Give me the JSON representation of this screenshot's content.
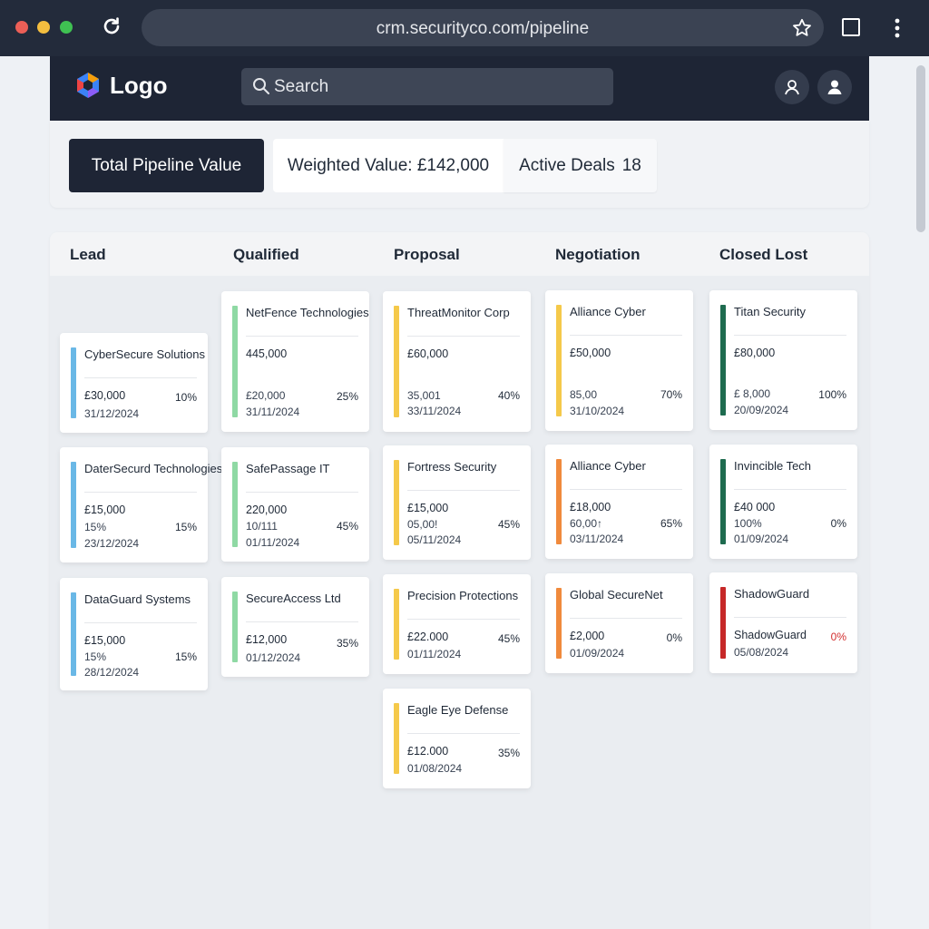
{
  "browser": {
    "url": "crm.securityco.com/pipeline"
  },
  "header": {
    "logo_text": "Logo",
    "search_placeholder": "Search"
  },
  "summary": {
    "total_label": "Total Pipeline Value",
    "weighted_label": "Weighted Value: £142,000",
    "active_label": "Active Deals",
    "active_count": "18"
  },
  "columns": [
    {
      "title": "Lead",
      "cards": [
        {
          "name": "CyberSecure Solutions",
          "value": "£30,000",
          "prob": "10%",
          "date": "31/12/2024",
          "color": "#6ab8e6"
        },
        {
          "name": "DaterSecurd Technologies",
          "value": "£15,000",
          "extra": "15%",
          "prob": "15%",
          "date": "23/12/2024",
          "color": "#6ab8e6"
        },
        {
          "name": "DataGuard Systems",
          "value": "£15,000",
          "extra": "15%",
          "prob": "15%",
          "date": "28/12/2024",
          "color": "#6ab8e6"
        }
      ]
    },
    {
      "title": "Qualified",
      "cards": [
        {
          "name": "NetFence Technologies",
          "value": "445,000",
          "value2": "£20,000",
          "prob": "25%",
          "date": "31/11/2024",
          "color": "#8fd9a4"
        },
        {
          "name": "SafePassage IT",
          "value": "220,000",
          "extra": "10/111",
          "prob": "45%",
          "date": "01/11/2024",
          "color": "#8fd9a4"
        },
        {
          "name": "SecureAccess Ltd",
          "value": "£12,000",
          "prob": "35%",
          "date": "01/12/2024",
          "color": "#8fd9a4"
        }
      ]
    },
    {
      "title": "Proposal",
      "cards": [
        {
          "name": "ThreatMonitor Corp",
          "value": "£60,000",
          "value2": "35,001",
          "prob": "40%",
          "date": "33/11/2024",
          "color": "#f5c94a"
        },
        {
          "name": "Fortress Security",
          "value": "£15,000",
          "extra": "05,00!",
          "prob": "45%",
          "date": "05/11/2024",
          "color": "#f5c94a"
        },
        {
          "name": "Precision Protections",
          "value": "£22.000",
          "prob": "45%",
          "date": "01/11/2024",
          "color": "#f5c94a"
        },
        {
          "name": "Eagle Eye Defense",
          "value": "£12.000",
          "prob": "35%",
          "date": "01/08/2024",
          "color": "#f5c94a"
        }
      ]
    },
    {
      "title": "Negotiation",
      "cards": [
        {
          "name": "Alliance Cyber",
          "value": "£50,000",
          "value2": "85,00",
          "prob": "70%",
          "date": "31/10/2024",
          "color": "#f5c94a"
        },
        {
          "name": "Alliance Cyber",
          "value": "£18,000",
          "extra": "60,00↑",
          "prob": "65%",
          "date": "03/11/2024",
          "color": "#f08a3c"
        },
        {
          "name": "Global SecureNet",
          "value": "£2,000",
          "prob": "0%",
          "date": "01/09/2024",
          "color": "#f08a3c"
        }
      ]
    },
    {
      "title": "Closed Lost",
      "cards": [
        {
          "name": "Titan Security",
          "value": "£80,000",
          "value2": "£ 8,000",
          "prob": "100%",
          "date": "20/09/2024",
          "color": "#1e6b4f"
        },
        {
          "name": "Invincible Tech",
          "value": "£40 000",
          "extra": "100%",
          "prob": "0%",
          "date": "01/09/2024",
          "color": "#1e6b4f"
        },
        {
          "name": "ShadowGuard",
          "value": "ShadowGuard",
          "prob": "0%",
          "date": "05/08/2024",
          "color": "#c62828",
          "prob_color": "#d32f2f"
        }
      ]
    }
  ]
}
